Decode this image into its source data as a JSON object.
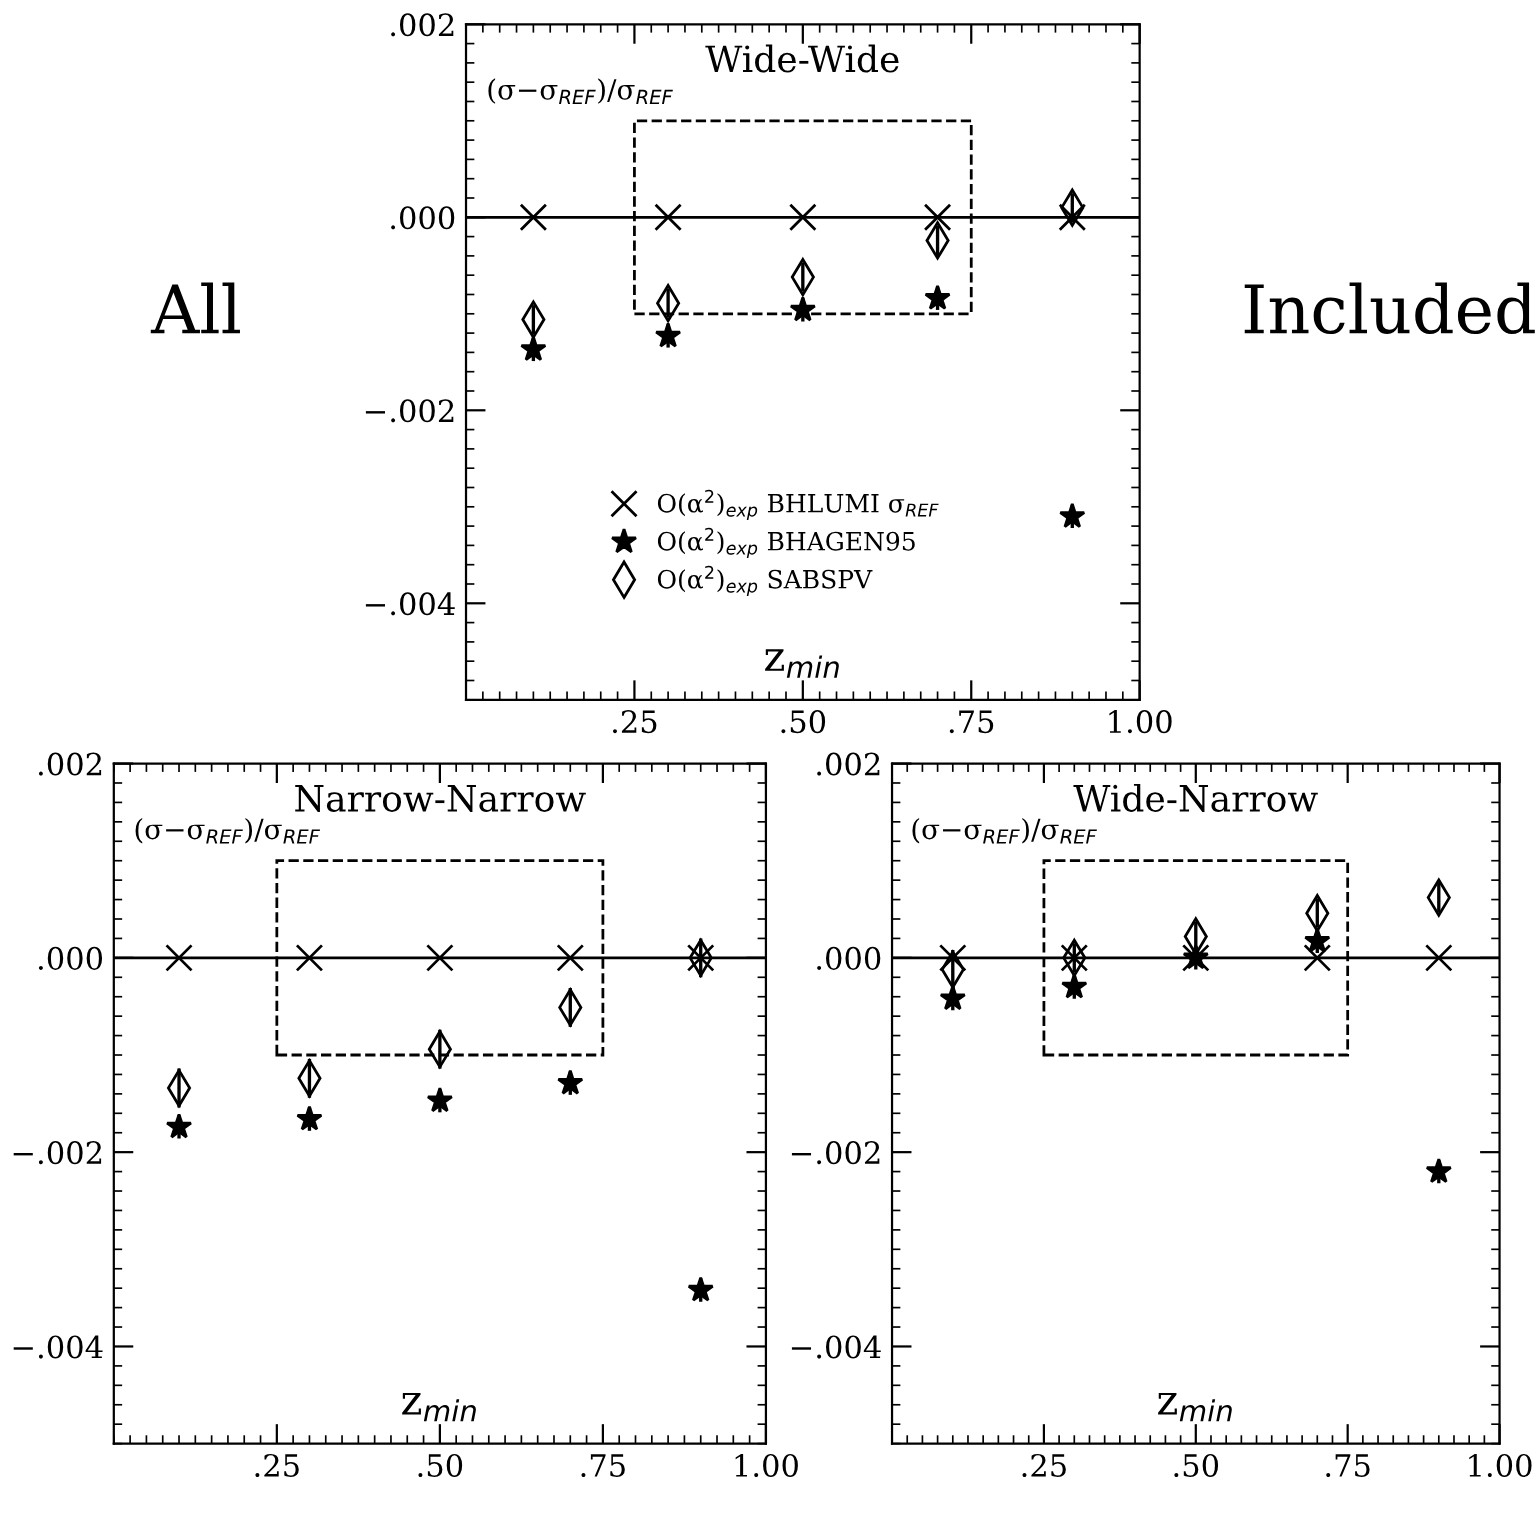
{
  "chart_data": [
    {
      "type": "scatter",
      "title": "Wide-Wide",
      "xlabel": "z$_{min}$",
      "ylabel": "(σ−σ$_{REF}$)/σ$_{REF}$",
      "annotations": [
        "All",
        "Included"
      ],
      "x": [
        0.1,
        0.3,
        0.5,
        0.7,
        0.9
      ],
      "series": [
        {
          "name": "O(α$^{2}$)$_{exp}$ BHLUMI σ$_{REF}$",
          "color": "#000000",
          "marker": "cross",
          "values": [
            0,
            0,
            0,
            0,
            0
          ]
        },
        {
          "name": "O(α$^{2}$)$_{exp}$ BHAGEN95",
          "color": "#000000",
          "marker": "star",
          "values": [
            -0.00137,
            -0.00123,
            -0.00096,
            -0.00084,
            -0.0031
          ],
          "errors": [
            0.00012,
            0.00012,
            0.00012,
            0.00012,
            0.00012
          ]
        },
        {
          "name": "O(α$^{2}$)$_{exp}$ SABSPV",
          "color": "#000000",
          "marker": "diamond",
          "values": [
            -0.00106,
            -0.00089,
            -0.00062,
            -0.00024,
            0.0001
          ],
          "errors": [
            0.00015,
            0.00015,
            0.00015,
            0.00015,
            0.00015
          ]
        }
      ],
      "ref_lines": [
        {
          "axis": "y",
          "value": 0,
          "color": "#000000",
          "line_style": "solid"
        }
      ],
      "xlim": [
        0,
        1
      ],
      "ylim": [
        -0.005,
        0.002
      ],
      "xticks": [
        {
          "value": 0.25,
          "label": ".25"
        },
        {
          "value": 0.5,
          "label": ".50"
        },
        {
          "value": 0.75,
          "label": ".75"
        },
        {
          "value": 1.0,
          "label": "1.00"
        }
      ],
      "yticks": [
        {
          "value": 0.002,
          "label": ".002"
        },
        {
          "value": 0,
          "label": ".000"
        },
        {
          "value": -0.002,
          "label": "−.002"
        },
        {
          "value": -0.004,
          "label": "−.004"
        }
      ],
      "legend": "bottom",
      "grid": false
    },
    {
      "type": "scatter",
      "title": "Narrow-Narrow",
      "xlabel": "z$_{min}$",
      "ylabel": "(σ−σ$_{REF}$)/σ$_{REF}$",
      "x": [
        0.1,
        0.3,
        0.5,
        0.7,
        0.9
      ],
      "series": [
        {
          "color": "#000000",
          "marker": "cross",
          "values": [
            0,
            0,
            0,
            0,
            0
          ]
        },
        {
          "color": "#000000",
          "marker": "star",
          "values": [
            -0.00174,
            -0.00166,
            -0.00147,
            -0.00129,
            -0.00342
          ],
          "errors": [
            0.00012,
            0.00012,
            0.00012,
            0.00012,
            0.00012
          ]
        },
        {
          "color": "#000000",
          "marker": "diamond",
          "values": [
            -0.00134,
            -0.00124,
            -0.00094,
            -0.00051,
            0
          ],
          "errors": [
            0.0002,
            0.0002,
            0.0002,
            0.0002,
            0.0002
          ]
        }
      ],
      "ref_lines": [
        {
          "axis": "y",
          "value": 0,
          "color": "#000000",
          "line_style": "solid"
        }
      ],
      "xlim": [
        0,
        1
      ],
      "ylim": [
        -0.005,
        0.002
      ],
      "xticks": [
        {
          "value": 0.25,
          "label": ".25"
        },
        {
          "value": 0.5,
          "label": ".50"
        },
        {
          "value": 0.75,
          "label": ".75"
        },
        {
          "value": 1.0,
          "label": "1.00"
        }
      ],
      "yticks": [
        {
          "value": 0.002,
          "label": ".002"
        },
        {
          "value": 0,
          "label": ".000"
        },
        {
          "value": -0.002,
          "label": "−.002"
        },
        {
          "value": -0.004,
          "label": "−.004"
        }
      ],
      "grid": false
    },
    {
      "type": "scatter",
      "title": "Wide-Narrow",
      "xlabel": "z$_{min}$",
      "ylabel": "(σ−σ$_{REF}$)/σ$_{REF}$",
      "x": [
        0.1,
        0.3,
        0.5,
        0.7,
        0.9
      ],
      "series": [
        {
          "color": "#000000",
          "marker": "cross",
          "values": [
            0,
            0,
            0,
            0,
            0
          ]
        },
        {
          "color": "#000000",
          "marker": "star",
          "values": [
            -0.00042,
            -0.0003,
            0,
            0.00017,
            -0.0022
          ],
          "errors": [
            0.00012,
            0.00012,
            0.00012,
            0.00012,
            0.00012
          ]
        },
        {
          "color": "#000000",
          "marker": "diamond",
          "values": [
            -0.00012,
            0,
            0.00022,
            0.00046,
            0.00062
          ],
          "errors": [
            0.0002,
            0.00015,
            0.00015,
            0.00015,
            0.00015
          ]
        }
      ],
      "ref_lines": [
        {
          "axis": "y",
          "value": 0,
          "color": "#000000",
          "line_style": "solid"
        }
      ],
      "xlim": [
        0,
        1
      ],
      "ylim": [
        -0.005,
        0.002
      ],
      "xticks": [
        {
          "value": 0.25,
          "label": ".25"
        },
        {
          "value": 0.5,
          "label": ".50"
        },
        {
          "value": 0.75,
          "label": ".75"
        },
        {
          "value": 1.0,
          "label": "1.00"
        }
      ],
      "yticks": [
        {
          "value": 0.002,
          "label": ".002"
        },
        {
          "value": 0,
          "label": ".000"
        },
        {
          "value": -0.002,
          "label": "−.002"
        },
        {
          "value": -0.004,
          "label": "−.004"
        }
      ],
      "grid": false
    }
  ]
}
